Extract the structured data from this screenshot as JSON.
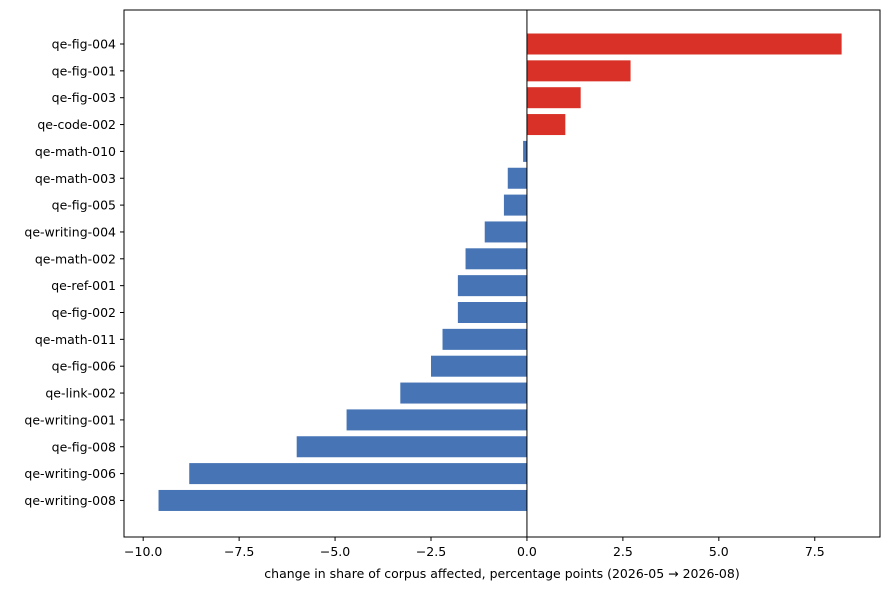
{
  "chart_data": {
    "type": "bar",
    "orientation": "horizontal",
    "title": "",
    "xlabel": "change in share of corpus affected, percentage points (2026-05 → 2026-08)",
    "ylabel": "",
    "xlim": [
      -10.5,
      9.2
    ],
    "xticks": [
      -10.0,
      -7.5,
      -5.0,
      -2.5,
      0.0,
      2.5,
      5.0,
      7.5
    ],
    "xtick_labels": [
      "−10.0",
      "−7.5",
      "−5.0",
      "−2.5",
      "0.0",
      "2.5",
      "5.0",
      "7.5"
    ],
    "grid": false,
    "legend": "none",
    "colors": {
      "positive": "#d93127",
      "negative": "#4674b5"
    },
    "categories": [
      "qe-fig-004",
      "qe-fig-001",
      "qe-fig-003",
      "qe-code-002",
      "qe-math-010",
      "qe-math-003",
      "qe-fig-005",
      "qe-writing-004",
      "qe-math-002",
      "qe-ref-001",
      "qe-fig-002",
      "qe-math-011",
      "qe-fig-006",
      "qe-link-002",
      "qe-writing-001",
      "qe-fig-008",
      "qe-writing-006",
      "qe-writing-008"
    ],
    "values": [
      8.2,
      2.7,
      1.4,
      1.0,
      -0.1,
      -0.5,
      -0.6,
      -1.1,
      -1.6,
      -1.8,
      -1.8,
      -2.2,
      -2.5,
      -3.3,
      -4.7,
      -6.0,
      -8.8,
      -9.6
    ]
  }
}
